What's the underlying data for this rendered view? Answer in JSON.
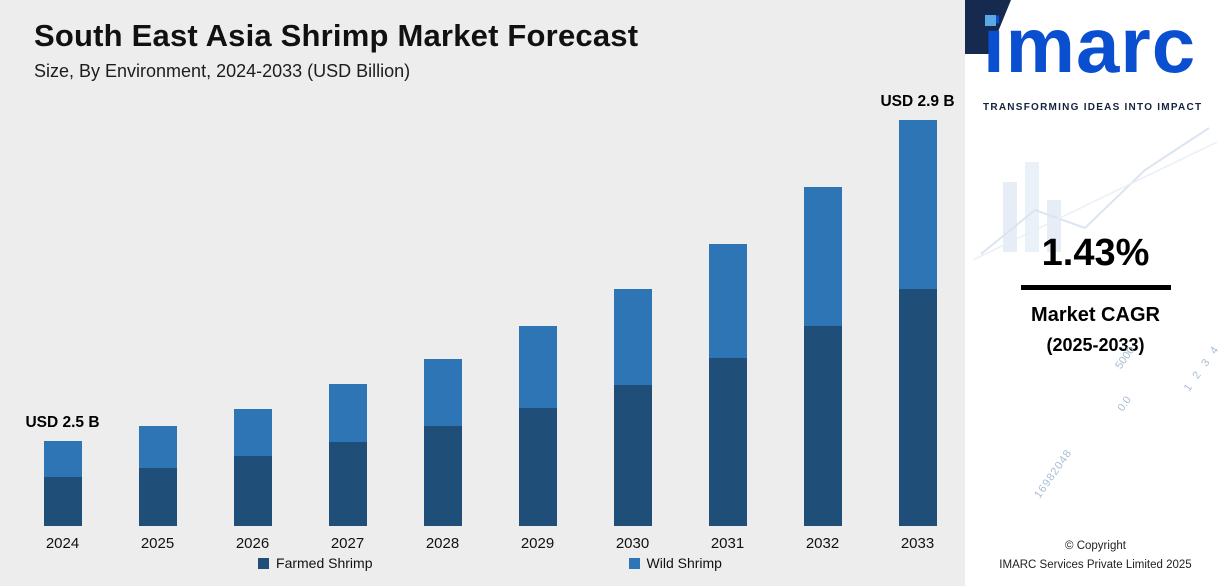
{
  "header": {
    "title": "South East Asia Shrimp Market Forecast",
    "subtitle": "Size, By Environment, 2024-2033 (USD Billion)"
  },
  "chart_data": {
    "type": "bar",
    "stacked": true,
    "title": "South East Asia Shrimp Market Forecast",
    "subtitle": "Size, By Environment, 2024-2033 (USD Billion)",
    "categories": [
      "2024",
      "2025",
      "2026",
      "2027",
      "2028",
      "2029",
      "2030",
      "2031",
      "2032",
      "2033"
    ],
    "series": [
      {
        "name": "Farmed Shrimp",
        "color": "#1f4e79",
        "values": [
          47,
          55,
          67,
          80,
          95,
          112,
          134,
          160,
          190,
          226
        ]
      },
      {
        "name": "Wild Shrimp",
        "color": "#2e75b6",
        "values": [
          34,
          40,
          45,
          55,
          64,
          78,
          91,
          109,
          132,
          161
        ]
      }
    ],
    "values_note": "No value axis is drawn; series values are relative stacked bar heights read from the image. Labeled totals: 2024 = USD 2.5 B, 2033 = USD 2.9 B.",
    "annotations": [
      {
        "category": "2024",
        "text": "USD 2.5 B"
      },
      {
        "category": "2033",
        "text": "USD 2.9 B"
      }
    ],
    "xlabel": "",
    "ylabel": "",
    "value_axis_visible": false,
    "grid": false,
    "legend_position": "bottom"
  },
  "sidebar": {
    "logo_text": "imarc",
    "tagline": "TRANSFORMING IDEAS INTO IMPACT",
    "cagr_value": "1.43%",
    "cagr_label_line1": "Market CAGR",
    "cagr_label_line2": "(2025-2033)",
    "copyright_line1": "© Copyright",
    "copyright_line2": "IMARC Services Private Limited 2025",
    "decor_numbers": [
      "5000",
      "0.0",
      "1 2 3 4",
      "16982048"
    ],
    "colors": {
      "logo_blue": "#0a4fd0",
      "logo_dot_blue": "#5aa9e4",
      "navy": "#16294e"
    }
  },
  "colors": {
    "page_background": "#ededed",
    "panel_background": "#ffffff",
    "farmed_shrimp": "#1f4e79",
    "wild_shrimp": "#2e75b6",
    "title_text": "#111111"
  }
}
